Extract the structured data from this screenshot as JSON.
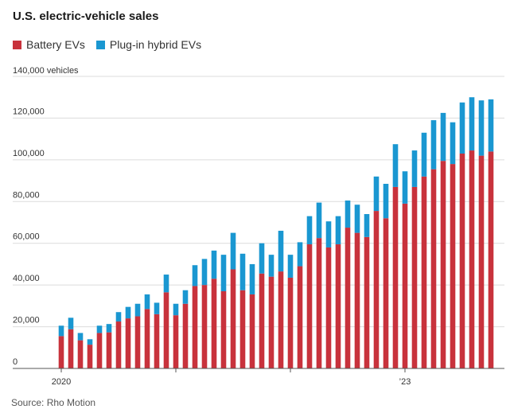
{
  "chart_data": {
    "type": "bar",
    "stacked": true,
    "title": "U.S. electric-vehicle sales",
    "source": "Source: Rho Motion",
    "y_unit_label": "140,000 vehicles",
    "ylim": [
      0,
      140000
    ],
    "y_ticks": [
      {
        "value": 0,
        "label": "0"
      },
      {
        "value": 20000,
        "label": "20,000"
      },
      {
        "value": 40000,
        "label": "40,000"
      },
      {
        "value": 60000,
        "label": "60,000"
      },
      {
        "value": 80000,
        "label": "80,000"
      },
      {
        "value": 100000,
        "label": "100,000"
      },
      {
        "value": 120000,
        "label": "120,000"
      }
    ],
    "x_tick_labels": [
      {
        "index": 0,
        "label": "2020"
      },
      {
        "index": 36,
        "label": "’23"
      }
    ],
    "x_tick_marks": [
      0,
      12,
      24,
      36,
      48
    ],
    "series": [
      {
        "name": "Battery EVs",
        "color": "#c8323c",
        "values": [
          15500,
          18800,
          13500,
          11400,
          17000,
          17300,
          22500,
          24000,
          25000,
          28500,
          26000,
          36500,
          25500,
          31000,
          39500,
          40000,
          43000,
          37000,
          47500,
          37500,
          35500,
          45500,
          44000,
          46500,
          43500,
          49000,
          59500,
          62500,
          58000,
          59500,
          67500,
          65000,
          63000,
          75500,
          72000,
          87000,
          79000,
          87000,
          92000,
          95500,
          99500,
          98000,
          103000,
          104500,
          102000,
          104000
        ]
      },
      {
        "name": "Plug-in hybrid EVs",
        "color": "#1a97d1",
        "values": [
          5000,
          5500,
          3500,
          2600,
          3500,
          4000,
          4500,
          5500,
          6000,
          7000,
          5500,
          8500,
          5500,
          6500,
          10000,
          12500,
          13500,
          17500,
          17500,
          17500,
          14500,
          14500,
          10500,
          19500,
          11000,
          11500,
          13500,
          17000,
          12500,
          13500,
          13000,
          13500,
          11000,
          16500,
          16500,
          20500,
          15500,
          17500,
          21000,
          23500,
          23000,
          20000,
          24500,
          25500,
          26500,
          25000
        ]
      }
    ]
  }
}
